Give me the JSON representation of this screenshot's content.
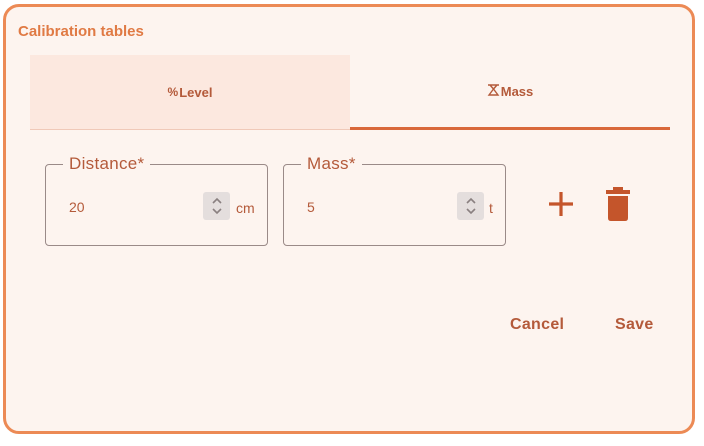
{
  "dialog": {
    "title": "Calibration tables"
  },
  "tabs": [
    {
      "label": "Level",
      "icon": "percent-icon",
      "selected": false
    },
    {
      "label": "Mass",
      "icon": "weight-icon",
      "selected": true
    }
  ],
  "fields": {
    "distance": {
      "label": "Distance*",
      "value": "20",
      "unit": "cm"
    },
    "mass": {
      "label": "Mass*",
      "value": "5",
      "unit": "t"
    }
  },
  "row_actions": {
    "add": "add-icon",
    "delete": "delete-icon"
  },
  "actions": {
    "cancel_label": "Cancel",
    "save_label": "Save"
  },
  "colors": {
    "accent": "#ec8a55",
    "text": "#b45a3a",
    "background": "#fdf4ef",
    "selected_tab_indicator": "#d9683a"
  }
}
